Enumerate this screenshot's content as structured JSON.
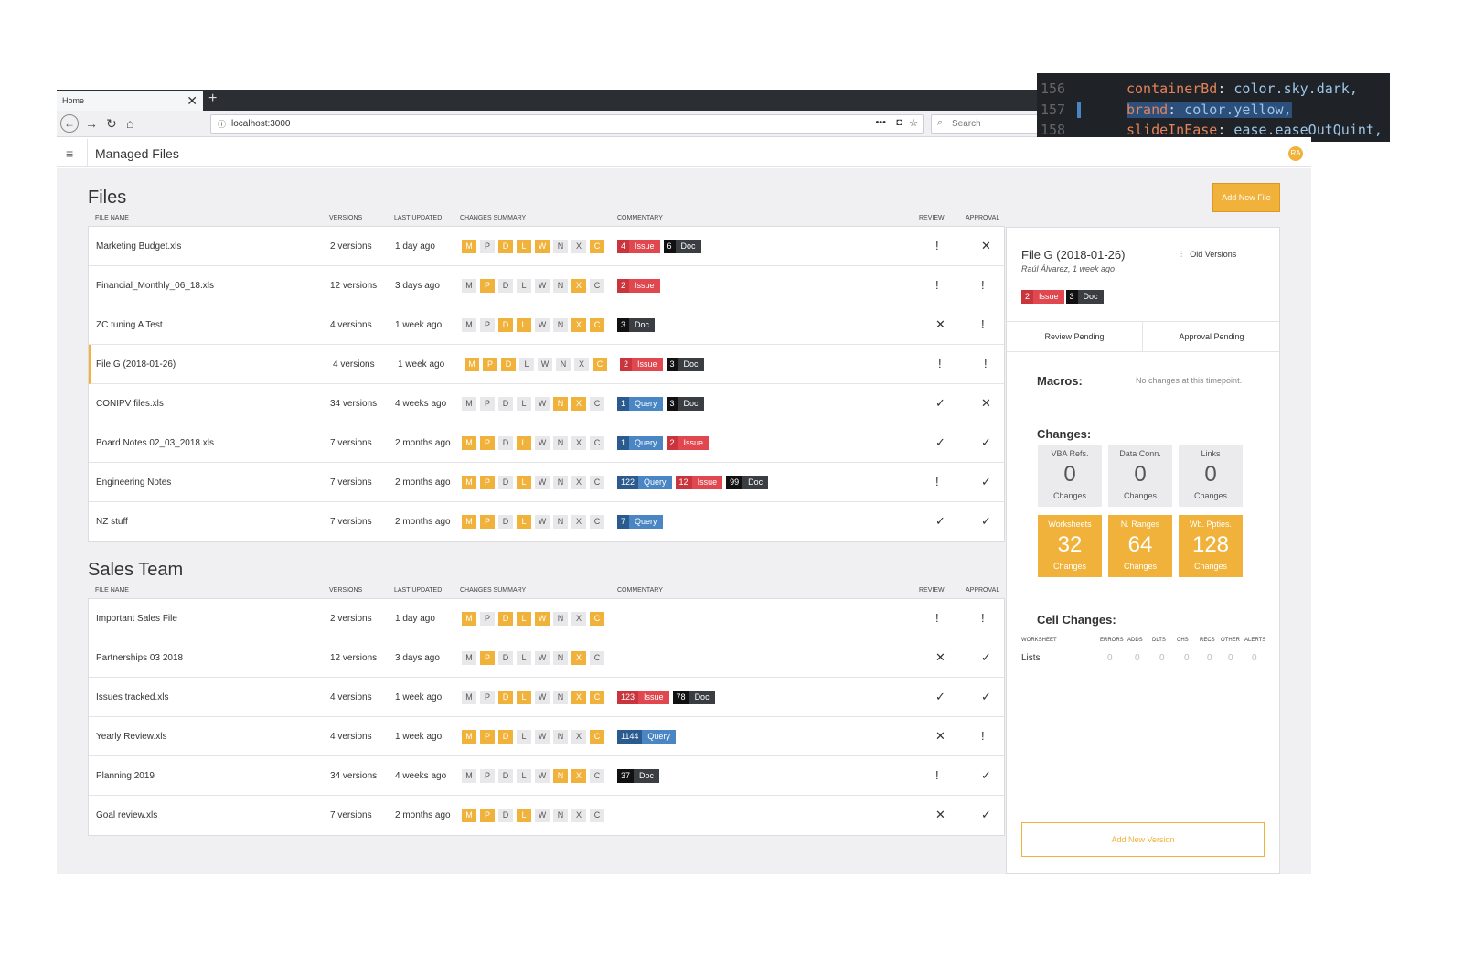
{
  "browser": {
    "tab_title": "Home",
    "tab_close": "✕",
    "new_tab": "+",
    "url": "localhost:3000",
    "search_placeholder": "Search",
    "url_menu": "•••"
  },
  "code_overlay": [
    {
      "line": "156",
      "key": "containerBd",
      "value": "color.sky.dark,"
    },
    {
      "line": "157",
      "key": "brand",
      "value": "color.yellow,"
    },
    {
      "line": "158",
      "key": "slideInEase",
      "value": "ease.easeOutQuint,"
    }
  ],
  "app": {
    "title": "Managed Files",
    "avatar": "RA",
    "add_file_label": "Add New File"
  },
  "headers": {
    "file_name": "FILE NAME",
    "versions": "VERSIONS",
    "last_updated": "LAST UPDATED",
    "changes_summary": "CHANGES SUMMARY",
    "commentary": "COMMENTARY",
    "review": "REVIEW",
    "approval": "APPROVAL"
  },
  "letters": [
    "M",
    "P",
    "D",
    "L",
    "W",
    "N",
    "X",
    "C"
  ],
  "sections": [
    {
      "title": "Files",
      "rows": [
        {
          "name": "Marketing Budget.xls",
          "versions": "2 versions",
          "updated": "1 day ago",
          "on": [
            1,
            0,
            1,
            1,
            1,
            0,
            0,
            1
          ],
          "tags": [
            {
              "type": "issue",
              "n": "4",
              "w": "Issue"
            },
            {
              "type": "doc",
              "n": "6",
              "w": "Doc"
            }
          ],
          "review": "!",
          "approval": "✕"
        },
        {
          "name": "Financial_Monthly_06_18.xls",
          "versions": "12 versions",
          "updated": "3 days ago",
          "on": [
            0,
            1,
            0,
            0,
            0,
            0,
            1,
            0
          ],
          "tags": [
            {
              "type": "issue",
              "n": "2",
              "w": "Issue"
            }
          ],
          "review": "!",
          "approval": "!"
        },
        {
          "name": "ZC tuning A Test",
          "versions": "4 versions",
          "updated": "1 week ago",
          "on": [
            0,
            0,
            1,
            1,
            0,
            0,
            1,
            1
          ],
          "tags": [
            {
              "type": "doc",
              "n": "3",
              "w": "Doc"
            }
          ],
          "review": "✕",
          "approval": "!"
        },
        {
          "name": "File G (2018-01-26)",
          "versions": "4 versions",
          "updated": "1 week ago",
          "on": [
            1,
            1,
            1,
            0,
            0,
            0,
            0,
            1
          ],
          "tags": [
            {
              "type": "issue",
              "n": "2",
              "w": "Issue"
            },
            {
              "type": "doc",
              "n": "3",
              "w": "Doc"
            }
          ],
          "review": "!",
          "approval": "!",
          "selected": true
        },
        {
          "name": "CONIPV files.xls",
          "versions": "34 versions",
          "updated": "4 weeks ago",
          "on": [
            0,
            0,
            0,
            0,
            0,
            1,
            1,
            0
          ],
          "tags": [
            {
              "type": "query",
              "n": "1",
              "w": "Query"
            },
            {
              "type": "doc",
              "n": "3",
              "w": "Doc"
            }
          ],
          "review": "✓",
          "approval": "✕"
        },
        {
          "name": "Board Notes 02_03_2018.xls",
          "versions": "7 versions",
          "updated": "2 months ago",
          "on": [
            1,
            1,
            0,
            1,
            0,
            0,
            0,
            0
          ],
          "tags": [
            {
              "type": "query",
              "n": "1",
              "w": "Query"
            },
            {
              "type": "issue",
              "n": "2",
              "w": "Issue"
            }
          ],
          "review": "✓",
          "approval": "✓"
        },
        {
          "name": "Engineering Notes",
          "versions": "7 versions",
          "updated": "2 months ago",
          "on": [
            1,
            1,
            0,
            1,
            0,
            0,
            0,
            0
          ],
          "tags": [
            {
              "type": "query",
              "n": "122",
              "w": "Query"
            },
            {
              "type": "issue",
              "n": "12",
              "w": "Issue"
            },
            {
              "type": "doc",
              "n": "99",
              "w": "Doc"
            }
          ],
          "review": "!",
          "approval": "✓"
        },
        {
          "name": "NZ stuff",
          "versions": "7 versions",
          "updated": "2 months ago",
          "on": [
            1,
            1,
            0,
            1,
            0,
            0,
            0,
            0
          ],
          "tags": [
            {
              "type": "query",
              "n": "7",
              "w": "Query"
            }
          ],
          "review": "✓",
          "approval": "✓"
        }
      ]
    },
    {
      "title": "Sales Team",
      "rows": [
        {
          "name": "Important Sales File",
          "versions": "2 versions",
          "updated": "1 day ago",
          "on": [
            1,
            0,
            1,
            1,
            1,
            0,
            0,
            1
          ],
          "tags": [],
          "review": "!",
          "approval": "!"
        },
        {
          "name": "Partnerships 03 2018",
          "versions": "12 versions",
          "updated": "3 days ago",
          "on": [
            0,
            1,
            0,
            0,
            0,
            0,
            1,
            0
          ],
          "tags": [],
          "review": "✕",
          "approval": "✓"
        },
        {
          "name": "Issues tracked.xls",
          "versions": "4 versions",
          "updated": "1 week ago",
          "on": [
            0,
            0,
            1,
            1,
            0,
            0,
            1,
            1
          ],
          "tags": [
            {
              "type": "issue",
              "n": "123",
              "w": "Issue"
            },
            {
              "type": "doc",
              "n": "78",
              "w": "Doc"
            }
          ],
          "review": "✓",
          "approval": "✓"
        },
        {
          "name": "Yearly Review.xls",
          "versions": "4 versions",
          "updated": "1 week ago",
          "on": [
            1,
            1,
            1,
            0,
            0,
            0,
            0,
            1
          ],
          "tags": [
            {
              "type": "query",
              "n": "1144",
              "w": "Query"
            }
          ],
          "review": "✕",
          "approval": "!"
        },
        {
          "name": "Planning 2019",
          "versions": "34 versions",
          "updated": "4 weeks ago",
          "on": [
            0,
            0,
            0,
            0,
            0,
            1,
            1,
            0
          ],
          "tags": [
            {
              "type": "doc",
              "n": "37",
              "w": "Doc"
            }
          ],
          "review": "!",
          "approval": "✓"
        },
        {
          "name": "Goal review.xls",
          "versions": "7 versions",
          "updated": "2 months ago",
          "on": [
            1,
            1,
            0,
            1,
            0,
            0,
            0,
            0
          ],
          "tags": [],
          "review": "✕",
          "approval": "✓"
        }
      ]
    }
  ],
  "panel": {
    "file_title": "File G (2018-01-26)",
    "author_line": "Raúl Álvarez, 1 week ago",
    "old_versions": "Old Versions",
    "tags": [
      {
        "type": "issue",
        "n": "2",
        "w": "Issue"
      },
      {
        "type": "doc",
        "n": "3",
        "w": "Doc"
      }
    ],
    "review_tab": "Review Pending",
    "approval_tab": "Approval Pending",
    "macros_title": "Macros:",
    "macros_note": "No changes at this timepoint.",
    "changes_title": "Changes:",
    "stats": [
      {
        "label": "VBA Refs.",
        "value": "0",
        "sub": "Changes",
        "highlight": false
      },
      {
        "label": "Data Conn.",
        "value": "0",
        "sub": "Changes",
        "highlight": false
      },
      {
        "label": "Links",
        "value": "0",
        "sub": "Changes",
        "highlight": false
      },
      {
        "label": "Worksheets",
        "value": "32",
        "sub": "Changes",
        "highlight": true
      },
      {
        "label": "N. Ranges",
        "value": "64",
        "sub": "Changes",
        "highlight": true
      },
      {
        "label": "Wb. Ppties.",
        "value": "128",
        "sub": "Changes",
        "highlight": true
      }
    ],
    "cell_changes_title": "Cell Changes:",
    "cell_headers": [
      "WORKSHEET",
      "ERRORS",
      "ADDS",
      "DLTS",
      "CHS",
      "RECS",
      "OTHER",
      "ALERTS"
    ],
    "cell_row": {
      "name": "Lists",
      "values": [
        "0",
        "0",
        "0",
        "0",
        "0",
        "0",
        "0"
      ]
    },
    "add_version": "Add New Version"
  },
  "colors": {
    "brand": "#f0b23a",
    "issue": "#e0474f",
    "query": "#4a86c4",
    "doc": "#3a3d42"
  }
}
